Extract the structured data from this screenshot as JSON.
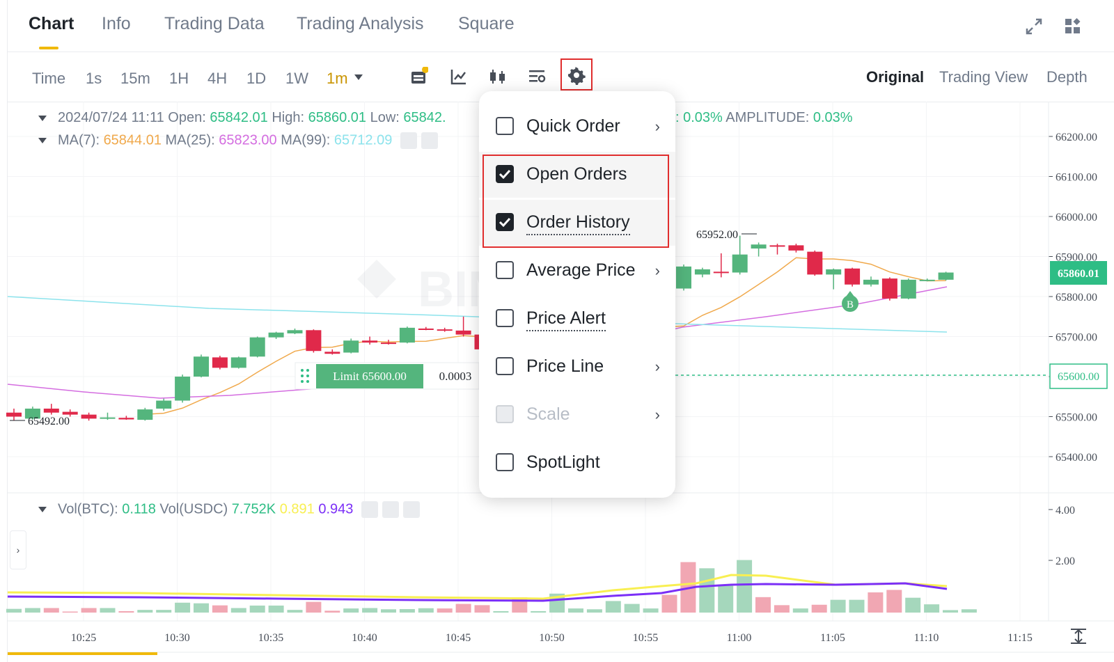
{
  "tabs": [
    "Chart",
    "Info",
    "Trading Data",
    "Trading Analysis",
    "Square"
  ],
  "toolbar": {
    "timeframes": [
      "Time",
      "1s",
      "15m",
      "1H",
      "4H",
      "1D",
      "1W",
      "1m"
    ],
    "selected_timeframe": "1m",
    "views": [
      "Original",
      "Trading View",
      "Depth"
    ],
    "selected_view": "Original"
  },
  "ohlc": {
    "datetime": "2024/07/24 11:11",
    "open_label": "Open:",
    "open": "65842.01",
    "high_label": "High:",
    "high": "65860.01",
    "low_label": "Low:",
    "low": "65842.",
    "change_tail": ": 0.03%",
    "amplitude_label": "AMPLITUDE:",
    "amplitude": "0.03%"
  },
  "ma": {
    "ma7_label": "MA(7):",
    "ma7": "65844.01",
    "ma25_label": "MA(25):",
    "ma25": "65823.00",
    "ma99_label": "MA(99):",
    "ma99": "65712.09"
  },
  "volume": {
    "btc_label": "Vol(BTC):",
    "btc": "0.118",
    "usdc_label": "Vol(USDC)",
    "usdc": "7.752K",
    "ma1": "0.891",
    "ma2": "0.943"
  },
  "chart_annotations": {
    "high_marker": "65952.00",
    "low_marker": "65492.00",
    "current_price": "65860.01",
    "limit_order_label": "Limit 65600.00",
    "limit_order_qty": "0.0003",
    "limit_price_tag": "65600.00",
    "buy_marker": "B"
  },
  "watermark": "BINANCE",
  "price_axis": [
    "66200.00",
    "66100.00",
    "66000.00",
    "65900.00",
    "65800.00",
    "65700.00",
    "65600.00",
    "65500.00",
    "65400.00"
  ],
  "volume_axis": [
    "4.00",
    "2.00"
  ],
  "time_axis": [
    "10:25",
    "10:30",
    "10:35",
    "10:40",
    "10:45",
    "10:50",
    "10:55",
    "11:00",
    "11:05",
    "11:10",
    "11:15"
  ],
  "settings_menu": {
    "items": [
      {
        "label": "Quick Order",
        "checked": false,
        "submenu": true,
        "disabled": false,
        "dotted": false
      },
      {
        "label": "Open Orders",
        "checked": true,
        "submenu": false,
        "disabled": false,
        "dotted": false
      },
      {
        "label": "Order History",
        "checked": true,
        "submenu": false,
        "disabled": false,
        "dotted": true
      },
      {
        "label": "Average Price",
        "checked": false,
        "submenu": true,
        "disabled": false,
        "dotted": false
      },
      {
        "label": "Price Alert",
        "checked": false,
        "submenu": false,
        "disabled": false,
        "dotted": true
      },
      {
        "label": "Price Line",
        "checked": false,
        "submenu": true,
        "disabled": false,
        "dotted": false
      },
      {
        "label": "Scale",
        "checked": false,
        "submenu": true,
        "disabled": true,
        "dotted": false
      },
      {
        "label": "SpotLight",
        "checked": false,
        "submenu": false,
        "disabled": false,
        "dotted": false
      }
    ]
  },
  "colors": {
    "up": "#2ebd85",
    "down": "#e0294a",
    "accent": "#f0b90b",
    "highlight_box": "#e02d2d"
  },
  "chart_data": {
    "type": "candlestick",
    "price_scale": [
      65400,
      66200
    ],
    "candles": [
      {
        "o": 65510,
        "h": 65520,
        "l": 65490,
        "c": 65500
      },
      {
        "o": 65495,
        "h": 65525,
        "l": 65492,
        "c": 65520
      },
      {
        "o": 65520,
        "h": 65532,
        "l": 65505,
        "c": 65510
      },
      {
        "o": 65512,
        "h": 65518,
        "l": 65500,
        "c": 65505
      },
      {
        "o": 65505,
        "h": 65510,
        "l": 65490,
        "c": 65495
      },
      {
        "o": 65495,
        "h": 65510,
        "l": 65492,
        "c": 65498
      },
      {
        "o": 65497,
        "h": 65502,
        "l": 65492,
        "c": 65493
      },
      {
        "o": 65492,
        "h": 65522,
        "l": 65490,
        "c": 65518
      },
      {
        "o": 65520,
        "h": 65545,
        "l": 65515,
        "c": 65540
      },
      {
        "o": 65540,
        "h": 65605,
        "l": 65535,
        "c": 65600
      },
      {
        "o": 65600,
        "h": 65655,
        "l": 65598,
        "c": 65650
      },
      {
        "o": 65648,
        "h": 65652,
        "l": 65618,
        "c": 65622
      },
      {
        "o": 65622,
        "h": 65650,
        "l": 65620,
        "c": 65648
      },
      {
        "o": 65650,
        "h": 65700,
        "l": 65648,
        "c": 65698
      },
      {
        "o": 65698,
        "h": 65712,
        "l": 65694,
        "c": 65710
      },
      {
        "o": 65708,
        "h": 65720,
        "l": 65706,
        "c": 65716
      },
      {
        "o": 65716,
        "h": 65718,
        "l": 65660,
        "c": 65664
      },
      {
        "o": 65662,
        "h": 65668,
        "l": 65655,
        "c": 65657
      },
      {
        "o": 65660,
        "h": 65695,
        "l": 65658,
        "c": 65690
      },
      {
        "o": 65690,
        "h": 65700,
        "l": 65680,
        "c": 65685
      },
      {
        "o": 65685,
        "h": 65692,
        "l": 65680,
        "c": 65682
      },
      {
        "o": 65685,
        "h": 65725,
        "l": 65683,
        "c": 65722
      },
      {
        "o": 65720,
        "h": 65724,
        "l": 65716,
        "c": 65718
      },
      {
        "o": 65718,
        "h": 65722,
        "l": 65712,
        "c": 65715
      },
      {
        "o": 65715,
        "h": 65750,
        "l": 65700,
        "c": 65705
      },
      {
        "o": 65705,
        "h": 65710,
        "l": 65660,
        "c": 65668
      }
    ],
    "candles_right": [
      {
        "o": 65820,
        "h": 65880,
        "l": 65815,
        "c": 65875
      },
      {
        "o": 65855,
        "h": 65872,
        "l": 65848,
        "c": 65868
      },
      {
        "o": 65862,
        "h": 65908,
        "l": 65848,
        "c": 65860
      },
      {
        "o": 65860,
        "h": 65952,
        "l": 65855,
        "c": 65905
      },
      {
        "o": 65920,
        "h": 65935,
        "l": 65900,
        "c": 65930
      },
      {
        "o": 65928,
        "h": 65932,
        "l": 65905,
        "c": 65925
      },
      {
        "o": 65928,
        "h": 65932,
        "l": 65910,
        "c": 65915
      },
      {
        "o": 65912,
        "h": 65915,
        "l": 65852,
        "c": 65855
      },
      {
        "o": 65855,
        "h": 65870,
        "l": 65818,
        "c": 65868
      },
      {
        "o": 65870,
        "h": 65872,
        "l": 65825,
        "c": 65830
      },
      {
        "o": 65830,
        "h": 65850,
        "l": 65825,
        "c": 65842
      },
      {
        "o": 65845,
        "h": 65848,
        "l": 65790,
        "c": 65795
      },
      {
        "o": 65795,
        "h": 65845,
        "l": 65793,
        "c": 65842
      },
      {
        "o": 65840,
        "h": 65845,
        "l": 65838,
        "c": 65842
      },
      {
        "o": 65842,
        "h": 65862,
        "l": 65840,
        "c": 65860
      }
    ],
    "volume_scale": [
      0,
      5
    ],
    "volumes": [
      0.18,
      0.22,
      0.22,
      0.05,
      0.22,
      0.22,
      0.07,
      0.13,
      0.13,
      0.48,
      0.45,
      0.35,
      0.22,
      0.34,
      0.34,
      0.13,
      0.52,
      0.09,
      0.2,
      0.22,
      0.16,
      0.17,
      0.21,
      0.2,
      0.42,
      0.36,
      0.07,
      0.74,
      0.07,
      0.92,
      0.2,
      0.16,
      0.56,
      0.42,
      0.2,
      0.86,
      2.45,
      2.15,
      1.3,
      2.55,
      0.75,
      0.36,
      0.2,
      0.38,
      0.62,
      0.62,
      0.98,
      1.1,
      0.72,
      0.4,
      0.12,
      0.16
    ]
  }
}
